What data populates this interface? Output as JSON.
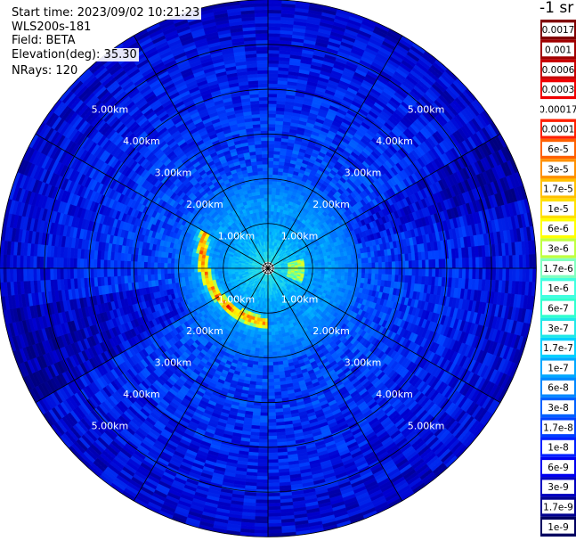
{
  "header": {
    "start_time": "Start time: 2023/09/02 10:21:23",
    "instrument": "WLS200s-181",
    "field": "Field: BETA",
    "elevation": "Elevation(deg): 35.30",
    "nrays": "NRays: 120"
  },
  "colorbar": {
    "unit": "-1 sr",
    "labels": [
      "0.0017",
      "0.001",
      "0.0006",
      "0.0003",
      "0.00017",
      "0.0001",
      "6e-5",
      "3e-5",
      "1.7e-5",
      "1e-5",
      "6e-6",
      "3e-6",
      "1.7e-6",
      "1e-6",
      "6e-7",
      "3e-7",
      "1.7e-7",
      "1e-7",
      "6e-8",
      "3e-8",
      "1.7e-8",
      "1e-8",
      "6e-9",
      "3e-9",
      "1.7e-9",
      "1e-9"
    ],
    "colors": [
      "#800000",
      "#a00000",
      "#c80000",
      "#f00000",
      "#ffffff",
      "#ff2000",
      "#ff6000",
      "#ff9000",
      "#ffc000",
      "#ffe000",
      "#ffff00",
      "#c0ff40",
      "#80ffc0",
      "#40ffe0",
      "#30ffd0",
      "#20e8e8",
      "#00d0ff",
      "#00a8ff",
      "#0088ff",
      "#0060ff",
      "#0040ff",
      "#0020ff",
      "#0000f0",
      "#0000c0",
      "#000090",
      "#000060"
    ]
  },
  "chart_data": {
    "type": "heatmap",
    "projection": "polar-ppi",
    "title": "",
    "rings_km": [
      1,
      2,
      3,
      4,
      5,
      6
    ],
    "max_range_km": 6.0,
    "spokes_deg": [
      0,
      30,
      60,
      90,
      120,
      150,
      180,
      210,
      240,
      270,
      300,
      330
    ],
    "ring_labels": [
      "1.00km",
      "2.00km",
      "3.00km",
      "4.00km",
      "5.00km"
    ],
    "ring_label_angles_deg": [
      45,
      135,
      225,
      315
    ],
    "nrays": 120,
    "features": [
      {
        "name": "aerosol arc",
        "range_km": [
          1.0,
          2.0
        ],
        "azimuth_deg": [
          180,
          300
        ],
        "peak_value": 0.0003
      },
      {
        "name": "near-field core",
        "range_km": [
          0.0,
          1.2
        ],
        "azimuth_deg": [
          0,
          360
        ],
        "value": 3e-06
      },
      {
        "name": "background",
        "range_km": [
          1.5,
          6.0
        ],
        "azimuth_deg": [
          0,
          360
        ],
        "value": 1e-08
      }
    ]
  }
}
